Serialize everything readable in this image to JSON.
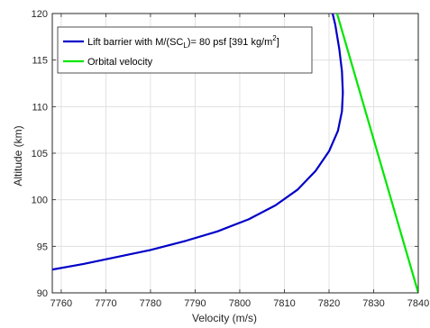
{
  "chart_data": {
    "type": "line",
    "xlabel": "Velocity (m/s)",
    "ylabel": "Altitude (km)",
    "xlim": [
      7758,
      7840
    ],
    "ylim": [
      90,
      120
    ],
    "xticks": [
      7760,
      7770,
      7780,
      7790,
      7800,
      7810,
      7820,
      7830,
      7840
    ],
    "yticks": [
      90,
      95,
      100,
      105,
      110,
      115,
      120
    ],
    "grid": true,
    "legend": "top-left",
    "series": [
      {
        "name_main": "Lift barrier with M/(SC",
        "name_sub": "L",
        "name_mid": ")= 80 psf [391 kg/m",
        "name_sup": "2",
        "name_end": "]",
        "color": "#0000c8",
        "x": [
          7758,
          7765,
          7772,
          7780,
          7788,
          7795,
          7802,
          7808,
          7813,
          7817,
          7820,
          7822,
          7822.9,
          7823.1,
          7822.9,
          7822.3,
          7821.4,
          7820.8
        ],
        "y": [
          92.5,
          93.1,
          93.8,
          94.6,
          95.6,
          96.6,
          97.9,
          99.4,
          101.1,
          103.1,
          105.2,
          107.4,
          109.5,
          111.5,
          113.8,
          116.2,
          118.8,
          120
        ]
      },
      {
        "name": "Orbital velocity",
        "color": "#00e600",
        "x": [
          7821.8,
          7840
        ],
        "y": [
          120,
          90
        ]
      }
    ]
  }
}
